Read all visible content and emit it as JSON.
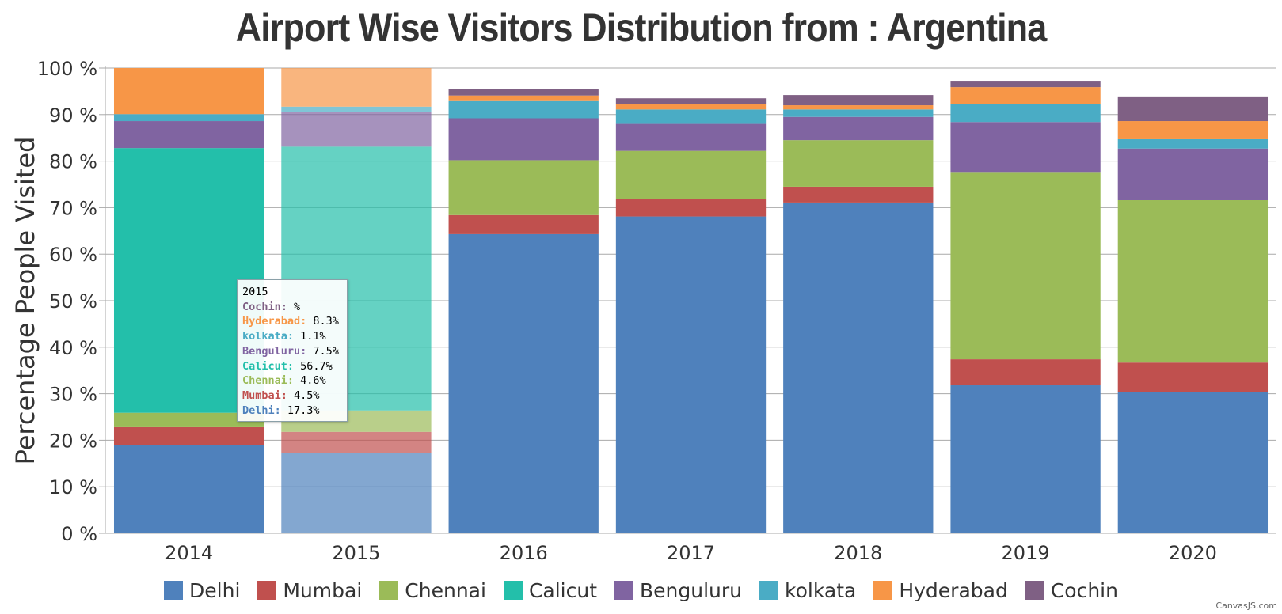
{
  "chart_data": {
    "type": "bar",
    "stacked": "100%",
    "title": "Airport Wise Visitors Distribution from :  Argentina",
    "ylabel": "Percentage People Visited",
    "xlabel": "",
    "ylim": [
      0,
      100
    ],
    "yticks": [
      "0 %",
      "10 %",
      "20 %",
      "30 %",
      "40 %",
      "50 %",
      "60 %",
      "70 %",
      "80 %",
      "90 %",
      "100 %"
    ],
    "categories": [
      "2014",
      "2015",
      "2016",
      "2017",
      "2018",
      "2019",
      "2020"
    ],
    "legend_position": "bottom",
    "grid": true,
    "highlighted_category": "2015",
    "series": [
      {
        "name": "Delhi",
        "color": "#4f81bc",
        "values": [
          18.9,
          17.3,
          64.3,
          68.1,
          71.1,
          31.8,
          30.4
        ]
      },
      {
        "name": "Mumbai",
        "color": "#c0504e",
        "values": [
          3.9,
          4.5,
          4.1,
          3.8,
          3.4,
          5.6,
          6.3
        ]
      },
      {
        "name": "Chennai",
        "color": "#9bbb58",
        "values": [
          3.1,
          4.6,
          11.8,
          10.3,
          10.0,
          40.1,
          34.9
        ]
      },
      {
        "name": "Calicut",
        "color": "#23bfaa",
        "values": [
          56.9,
          56.7,
          0,
          0,
          0,
          0,
          0
        ]
      },
      {
        "name": "Benguluru",
        "color": "#8064a1",
        "values": [
          5.8,
          7.5,
          9.0,
          5.8,
          5.0,
          10.9,
          11.1
        ]
      },
      {
        "name": "kolkata",
        "color": "#4aacc5",
        "values": [
          1.5,
          1.1,
          3.7,
          3.1,
          1.6,
          3.9,
          2.0
        ]
      },
      {
        "name": "Hyderabad",
        "color": "#f79647",
        "values": [
          9.9,
          8.3,
          1.2,
          1.1,
          0.9,
          3.6,
          3.9
        ]
      },
      {
        "name": "Cochin",
        "color": "#7f6084",
        "values": [
          0,
          0,
          1.4,
          1.3,
          2.2,
          1.2,
          5.3
        ]
      }
    ]
  },
  "tooltip": {
    "title": "2015",
    "rows": [
      {
        "label": "Cochin:",
        "value": " %",
        "color": "#7f6084"
      },
      {
        "label": "Hyderabad:",
        "value": "8.3%",
        "color": "#f79647"
      },
      {
        "label": "kolkata:",
        "value": "1.1%",
        "color": "#4aacc5"
      },
      {
        "label": "Benguluru:",
        "value": "7.5%",
        "color": "#8064a1"
      },
      {
        "label": "Calicut:",
        "value": "56.7%",
        "color": "#23bfaa"
      },
      {
        "label": "Chennai:",
        "value": "4.6%",
        "color": "#9bbb58"
      },
      {
        "label": "Mumbai:",
        "value": "4.5%",
        "color": "#c0504e"
      },
      {
        "label": "Delhi:",
        "value": "17.3%",
        "color": "#4f81bc"
      }
    ]
  },
  "credit": "CanvasJS.com"
}
